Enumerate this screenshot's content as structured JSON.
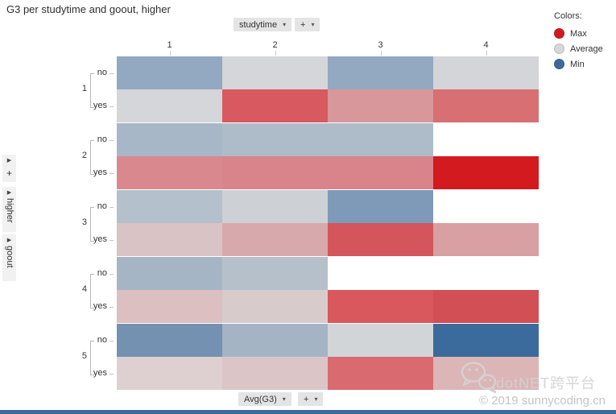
{
  "title": "G3 per studytime and goout, higher",
  "top_controls": {
    "column_field": "studytime",
    "add_button": "+"
  },
  "bottom_controls": {
    "value_field": "Avg(G3)",
    "add_button": "+"
  },
  "legend": {
    "title": "Colors:",
    "items": [
      {
        "label": "Max",
        "color": "#d21a1f"
      },
      {
        "label": "Average",
        "color": "#d7d7d7"
      },
      {
        "label": "Min",
        "color": "#3a6b9c"
      }
    ]
  },
  "left_panels": [
    {
      "label": "+"
    },
    {
      "label": "higher"
    },
    {
      "label": "goout"
    }
  ],
  "watermark": {
    "brand": "dotNET跨平台",
    "copyright": "© 2019 sunnycoding.cn"
  },
  "chart_data": {
    "type": "heatmap",
    "title": "G3 per studytime and goout, higher",
    "x_field": "studytime",
    "x_labels": [
      "1",
      "2",
      "3",
      "4"
    ],
    "row_group_field": "goout",
    "row_group_labels": [
      "1",
      "2",
      "3",
      "4",
      "5"
    ],
    "row_subgroup_field": "higher",
    "row_subgroup_labels": [
      "no",
      "yes"
    ],
    "value_field": "Avg(G3)",
    "legend_position": "top-right",
    "color_encoding": {
      "max": "#d21a1f",
      "average": "#d7d7d7",
      "min": "#3a6b9c"
    },
    "rows": [
      {
        "goout": "1",
        "higher": "no",
        "cell_colors": [
          "#93a8c1",
          "#d4d6d9",
          "#93a8c1",
          "#d3d5d8"
        ]
      },
      {
        "goout": "1",
        "higher": "yes",
        "cell_colors": [
          "#d4d6d9",
          "#d8595f",
          "#d7979b",
          "#d76f73"
        ]
      },
      {
        "goout": "2",
        "higher": "no",
        "cell_colors": [
          "#a8b7c7",
          "#aebcc9",
          "#aebcc9",
          null
        ]
      },
      {
        "goout": "2",
        "higher": "yes",
        "cell_colors": [
          "#d9898e",
          "#d8848a",
          "#d8848a",
          "#d21a1f"
        ]
      },
      {
        "goout": "3",
        "higher": "no",
        "cell_colors": [
          "#b4c0cb",
          "#cdd1d5",
          "#7f9ab8",
          null
        ]
      },
      {
        "goout": "3",
        "higher": "yes",
        "cell_colors": [
          "#d9c3c4",
          "#d8a9ac",
          "#d4555b",
          "#d8a0a3"
        ]
      },
      {
        "goout": "4",
        "higher": "no",
        "cell_colors": [
          "#a6b5c6",
          "#b6c0cb",
          null,
          null
        ]
      },
      {
        "goout": "4",
        "higher": "yes",
        "cell_colors": [
          "#dcbfc0",
          "#d8cbcc",
          "#d8585e",
          "#d14f55"
        ]
      },
      {
        "goout": "5",
        "higher": "no",
        "cell_colors": [
          "#7591b1",
          "#a5b4c5",
          "#d2d5d8",
          "#3a6b9c"
        ]
      },
      {
        "goout": "5",
        "higher": "yes",
        "cell_colors": [
          "#ded0d0",
          "#dcc5c6",
          "#d96a6f",
          "#dcb5b7"
        ]
      }
    ]
  }
}
